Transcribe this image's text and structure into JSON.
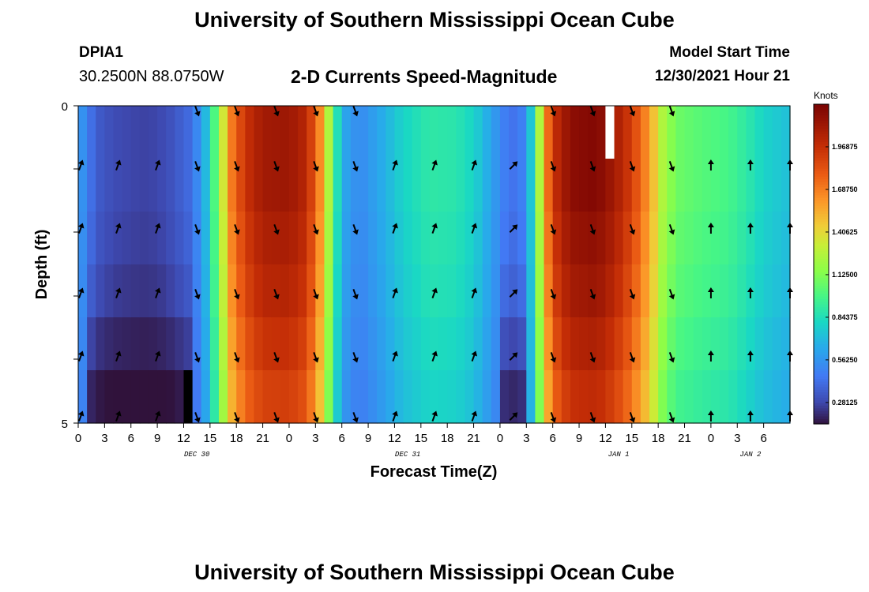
{
  "page": {
    "title_top": "University of Southern Mississippi Ocean Cube",
    "title_bottom": "University of Southern Mississippi Ocean Cube",
    "station_id": "DPIA1",
    "station_coords": "30.2500N  88.0750W",
    "plot_title": "2-D Currents Speed-Magnitude",
    "model_start_label": "Model Start Time",
    "model_start_value": "12/30/2021 Hour 21"
  },
  "chart_data": {
    "type": "heatmap",
    "title": "2-D Currents Speed-Magnitude",
    "xlabel": "Forecast Time(Z)",
    "ylabel": "Depth (ft)",
    "ylim": [
      0,
      5
    ],
    "y_ticks": [
      "0",
      "5"
    ],
    "x_tick_labels": [
      "0",
      "3",
      "6",
      "9",
      "12",
      "15",
      "18",
      "21",
      "0",
      "3",
      "6",
      "9",
      "12",
      "15",
      "18",
      "21",
      "0",
      "3",
      "6",
      "9",
      "12",
      "15",
      "18",
      "21",
      "0",
      "3",
      "6"
    ],
    "date_labels": [
      {
        "text": "DEC 30",
        "tick_index": 4.5
      },
      {
        "text": "DEC 31",
        "tick_index": 12.5
      },
      {
        "text": "JAN 1",
        "tick_index": 20.5
      },
      {
        "text": "JAN 2",
        "tick_index": 25.5
      }
    ],
    "colorbar": {
      "unit_label": "Knots",
      "vmin": 0.14,
      "vmax": 2.25,
      "tick_labels": [
        "0.28125",
        "0.56250",
        "0.84375",
        "1.12500",
        "1.40625",
        "1.68750",
        "1.96875"
      ],
      "tick_values": [
        0.28125,
        0.5625,
        0.84375,
        1.125,
        1.40625,
        1.6875,
        1.96875
      ]
    },
    "x_range_hours": [
      0,
      81
    ],
    "speed_by_hour": [
      [
        0,
        0.62
      ],
      [
        1,
        0.48
      ],
      [
        2,
        0.36
      ],
      [
        4,
        0.3
      ],
      [
        6,
        0.28
      ],
      [
        8,
        0.27
      ],
      [
        10,
        0.3
      ],
      [
        13,
        0.42
      ],
      [
        14.5,
        0.7
      ],
      [
        15.5,
        1.0
      ],
      [
        16.5,
        1.35
      ],
      [
        17.5,
        1.7
      ],
      [
        19,
        1.95
      ],
      [
        21,
        2.1
      ],
      [
        24,
        2.12
      ],
      [
        26,
        2.02
      ],
      [
        27.5,
        1.65
      ],
      [
        28.5,
        1.25
      ],
      [
        29.5,
        0.85
      ],
      [
        30.5,
        0.62
      ],
      [
        32,
        0.52
      ],
      [
        34,
        0.62
      ],
      [
        37,
        0.8
      ],
      [
        40,
        0.9
      ],
      [
        43,
        0.88
      ],
      [
        45,
        0.8
      ],
      [
        47,
        0.62
      ],
      [
        48.5,
        0.48
      ],
      [
        50,
        0.42
      ],
      [
        51,
        0.55
      ],
      [
        52,
        0.95
      ],
      [
        53,
        1.55
      ],
      [
        54,
        1.95
      ],
      [
        56,
        2.18
      ],
      [
        59,
        2.22
      ],
      [
        61,
        2.1
      ],
      [
        63,
        1.9
      ],
      [
        65,
        1.6
      ],
      [
        66.5,
        1.25
      ],
      [
        68,
        1.08
      ],
      [
        71,
        1.02
      ],
      [
        74,
        0.98
      ],
      [
        76,
        0.9
      ],
      [
        78,
        0.8
      ],
      [
        81,
        0.72
      ]
    ],
    "depth_rows": [
      {
        "label": "row1",
        "factor": 1.0,
        "low_factor": 1.0
      },
      {
        "label": "row2",
        "factor": 1.0,
        "low_factor": 1.0
      },
      {
        "label": "row3",
        "factor": 0.98,
        "low_factor": 0.95
      },
      {
        "label": "row4",
        "factor": 0.96,
        "low_factor": 0.85
      },
      {
        "label": "row5",
        "factor": 0.93,
        "low_factor": 0.65
      },
      {
        "label": "row6",
        "factor": 0.9,
        "low_factor": 0.45
      }
    ],
    "arrow_hours": [
      0,
      4.5,
      9,
      13.5,
      18,
      22.5,
      27,
      31.5,
      36,
      40.5,
      45,
      49.5,
      54,
      58.5,
      63,
      67.5,
      72,
      76.5,
      81
    ],
    "arrow_directions_deg": [
      20,
      20,
      20,
      160,
      160,
      160,
      160,
      160,
      20,
      20,
      20,
      45,
      160,
      160,
      160,
      160,
      0,
      0,
      0
    ],
    "missing_cells": [
      {
        "hour": 12,
        "row": 5,
        "color": "#000000"
      },
      {
        "hour": 60,
        "row": 0,
        "color": "#ffffff"
      }
    ]
  }
}
